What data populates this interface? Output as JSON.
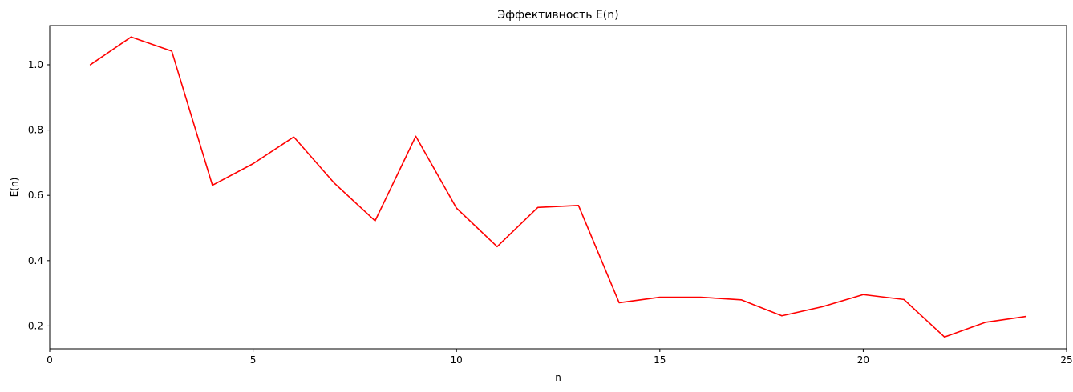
{
  "chart_data": {
    "type": "line",
    "title": "Эффективность E(n)",
    "xlabel": "n",
    "ylabel": "E(n)",
    "xlim": [
      0,
      25
    ],
    "ylim": [
      0.13,
      1.12
    ],
    "xticks": [
      0,
      5,
      10,
      15,
      20,
      25
    ],
    "yticks": [
      0.2,
      0.4,
      0.6,
      0.8,
      1.0
    ],
    "xtick_labels": [
      "0",
      "5",
      "10",
      "15",
      "20",
      "25"
    ],
    "ytick_labels": [
      "0.2",
      "0.4",
      "0.6",
      "0.8",
      "1.0"
    ],
    "grid": false,
    "series": [
      {
        "color": "#ff0000",
        "x": [
          1,
          2,
          3,
          4,
          5,
          6,
          7,
          8,
          9,
          10,
          11,
          12,
          13,
          14,
          15,
          16,
          17,
          18,
          19,
          20,
          21,
          22,
          23,
          24
        ],
        "y": [
          1.0,
          1.085,
          1.042,
          0.631,
          0.697,
          0.779,
          0.637,
          0.522,
          0.781,
          0.561,
          0.443,
          0.563,
          0.569,
          0.271,
          0.288,
          0.288,
          0.28,
          0.231,
          0.259,
          0.296,
          0.281,
          0.166,
          0.211,
          0.229
        ]
      }
    ]
  }
}
